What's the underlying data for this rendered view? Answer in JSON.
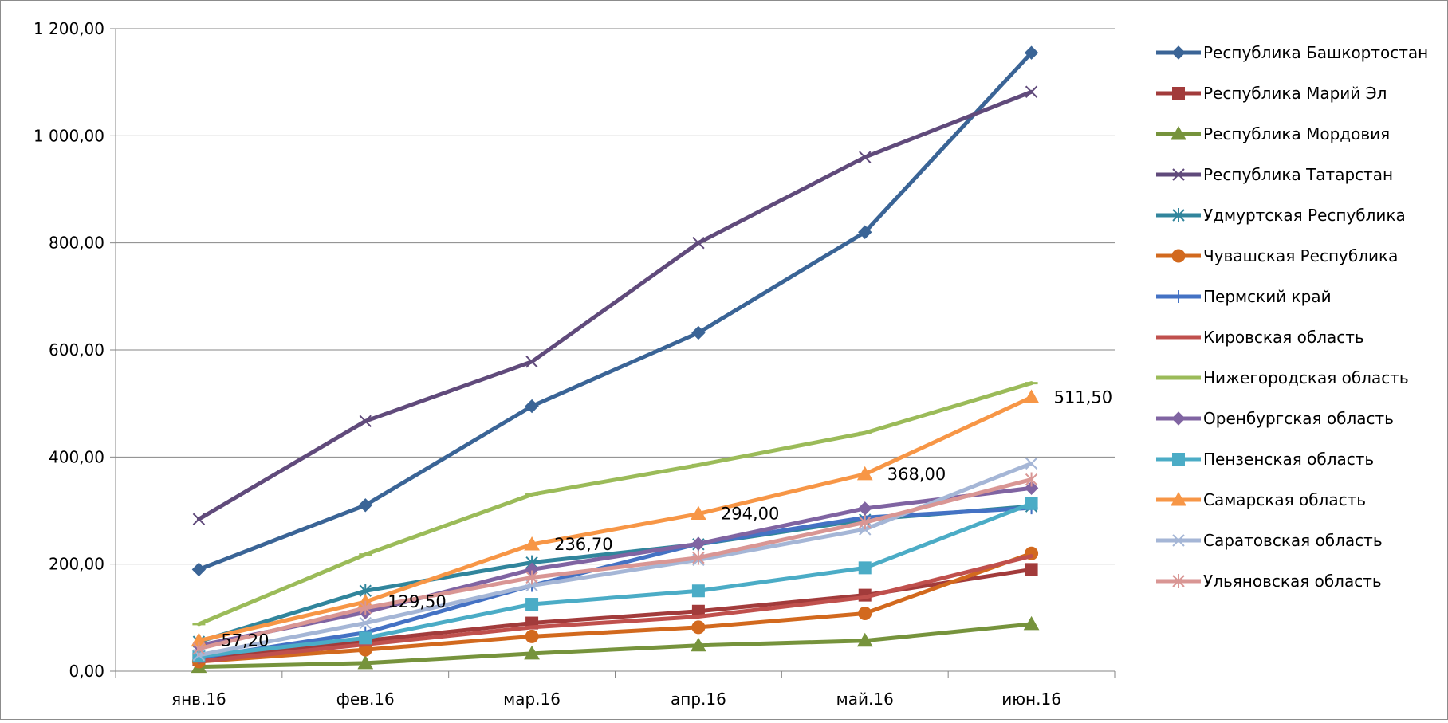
{
  "chart_data": {
    "type": "line",
    "title": "",
    "xlabel": "",
    "ylabel": "",
    "categories": [
      "янв.16",
      "фев.16",
      "мар.16",
      "апр.16",
      "май.16",
      "июн.16"
    ],
    "ylim": [
      0,
      1200
    ],
    "yticks": [
      0,
      200,
      400,
      600,
      800,
      1000,
      1200
    ],
    "ytick_labels": [
      "0,00",
      "200,00",
      "400,00",
      "600,00",
      "800,00",
      "1 000,00",
      "1 200,00"
    ],
    "grid": true,
    "legend_position": "right",
    "series": [
      {
        "name": "Республика Башкортостан",
        "values": [
          190,
          310,
          495,
          632,
          820,
          1155
        ],
        "color": "#3A6496",
        "marker": "diamond"
      },
      {
        "name": "Республика Марий Эл",
        "values": [
          22,
          57,
          90,
          112,
          142,
          190
        ],
        "color": "#A23B3B",
        "marker": "square"
      },
      {
        "name": "Республика Мордовия",
        "values": [
          8,
          15,
          33,
          48,
          57,
          88
        ],
        "color": "#76933C",
        "marker": "triangle"
      },
      {
        "name": "Республика Татарстан",
        "values": [
          284,
          467,
          578,
          800,
          960,
          1082
        ],
        "color": "#604A7B",
        "marker": "x"
      },
      {
        "name": "Удмуртская Республика",
        "values": [
          55,
          150,
          203,
          237,
          283,
          308
        ],
        "color": "#31859C",
        "marker": "star"
      },
      {
        "name": "Чувашская Республика",
        "values": [
          18,
          40,
          65,
          82,
          108,
          220
        ],
        "color": "#D2691E",
        "marker": "circle"
      },
      {
        "name": "Пермский край",
        "values": [
          25,
          72,
          160,
          238,
          287,
          305
        ],
        "color": "#4472C4",
        "marker": "plus"
      },
      {
        "name": "Кировская область",
        "values": [
          18,
          50,
          82,
          102,
          138,
          215
        ],
        "color": "#C0504D",
        "marker": "none"
      },
      {
        "name": "Нижегородская область",
        "values": [
          88,
          218,
          330,
          385,
          445,
          538
        ],
        "color": "#9BBB59",
        "marker": "dash"
      },
      {
        "name": "Оренбургская область",
        "values": [
          48,
          110,
          190,
          238,
          304,
          342
        ],
        "color": "#8064A2",
        "marker": "diamond"
      },
      {
        "name": "Пензенская область",
        "values": [
          28,
          62,
          125,
          150,
          193,
          313
        ],
        "color": "#4BACC6",
        "marker": "square"
      },
      {
        "name": "Самарская область",
        "values": [
          57.2,
          129.5,
          236.7,
          294,
          368,
          511.5
        ],
        "color": "#F79646",
        "marker": "triangle"
      },
      {
        "name": "Саратовская область",
        "values": [
          30,
          90,
          160,
          208,
          265,
          388
        ],
        "color": "#A5B6D6",
        "marker": "x"
      },
      {
        "name": "Ульяновская область",
        "values": [
          42,
          118,
          175,
          212,
          278,
          358
        ],
        "color": "#D99694",
        "marker": "star"
      }
    ],
    "annotations": [
      {
        "series": "Самарская область",
        "category": "янв.16",
        "text": "57,20"
      },
      {
        "series": "Самарская область",
        "category": "фев.16",
        "text": "129,50"
      },
      {
        "series": "Самарская область",
        "category": "мар.16",
        "text": "236,70"
      },
      {
        "series": "Самарская область",
        "category": "апр.16",
        "text": "294,00"
      },
      {
        "series": "Самарская область",
        "category": "май.16",
        "text": "368,00"
      },
      {
        "series": "Самарская область",
        "category": "июн.16",
        "text": "511,50"
      }
    ]
  }
}
